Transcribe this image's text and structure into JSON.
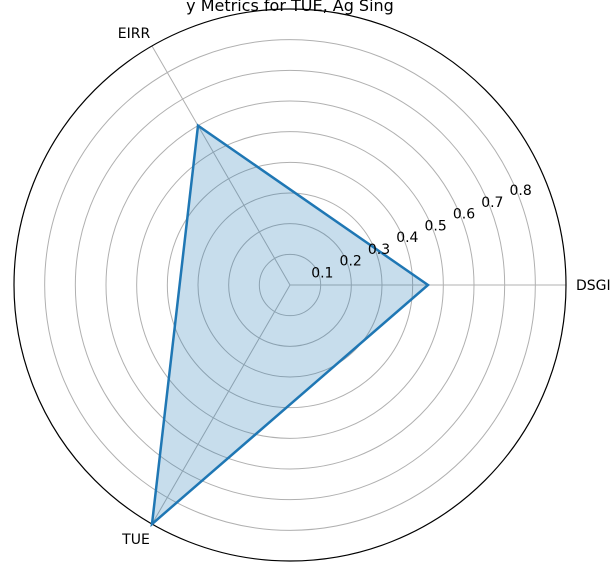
{
  "chart_data": {
    "type": "radar",
    "title": "y Metrics for TUE, Ag Sing",
    "axes": [
      "DSGI",
      "EIRR",
      "TUE"
    ],
    "series": [
      {
        "values": [
          0.45,
          0.6,
          0.9
        ],
        "line_color": "#1f77b4",
        "fill_color": "#1f77b4",
        "fill_opacity": 0.25
      }
    ],
    "r_ticks": [
      0.1,
      0.2,
      0.3,
      0.4,
      0.5,
      0.6,
      0.7,
      0.8
    ],
    "r_tick_labels": [
      "0.1",
      "0.2",
      "0.3",
      "0.4",
      "0.5",
      "0.6",
      "0.7",
      "0.8"
    ],
    "r_range": [
      0,
      0.9
    ],
    "grid": true
  }
}
